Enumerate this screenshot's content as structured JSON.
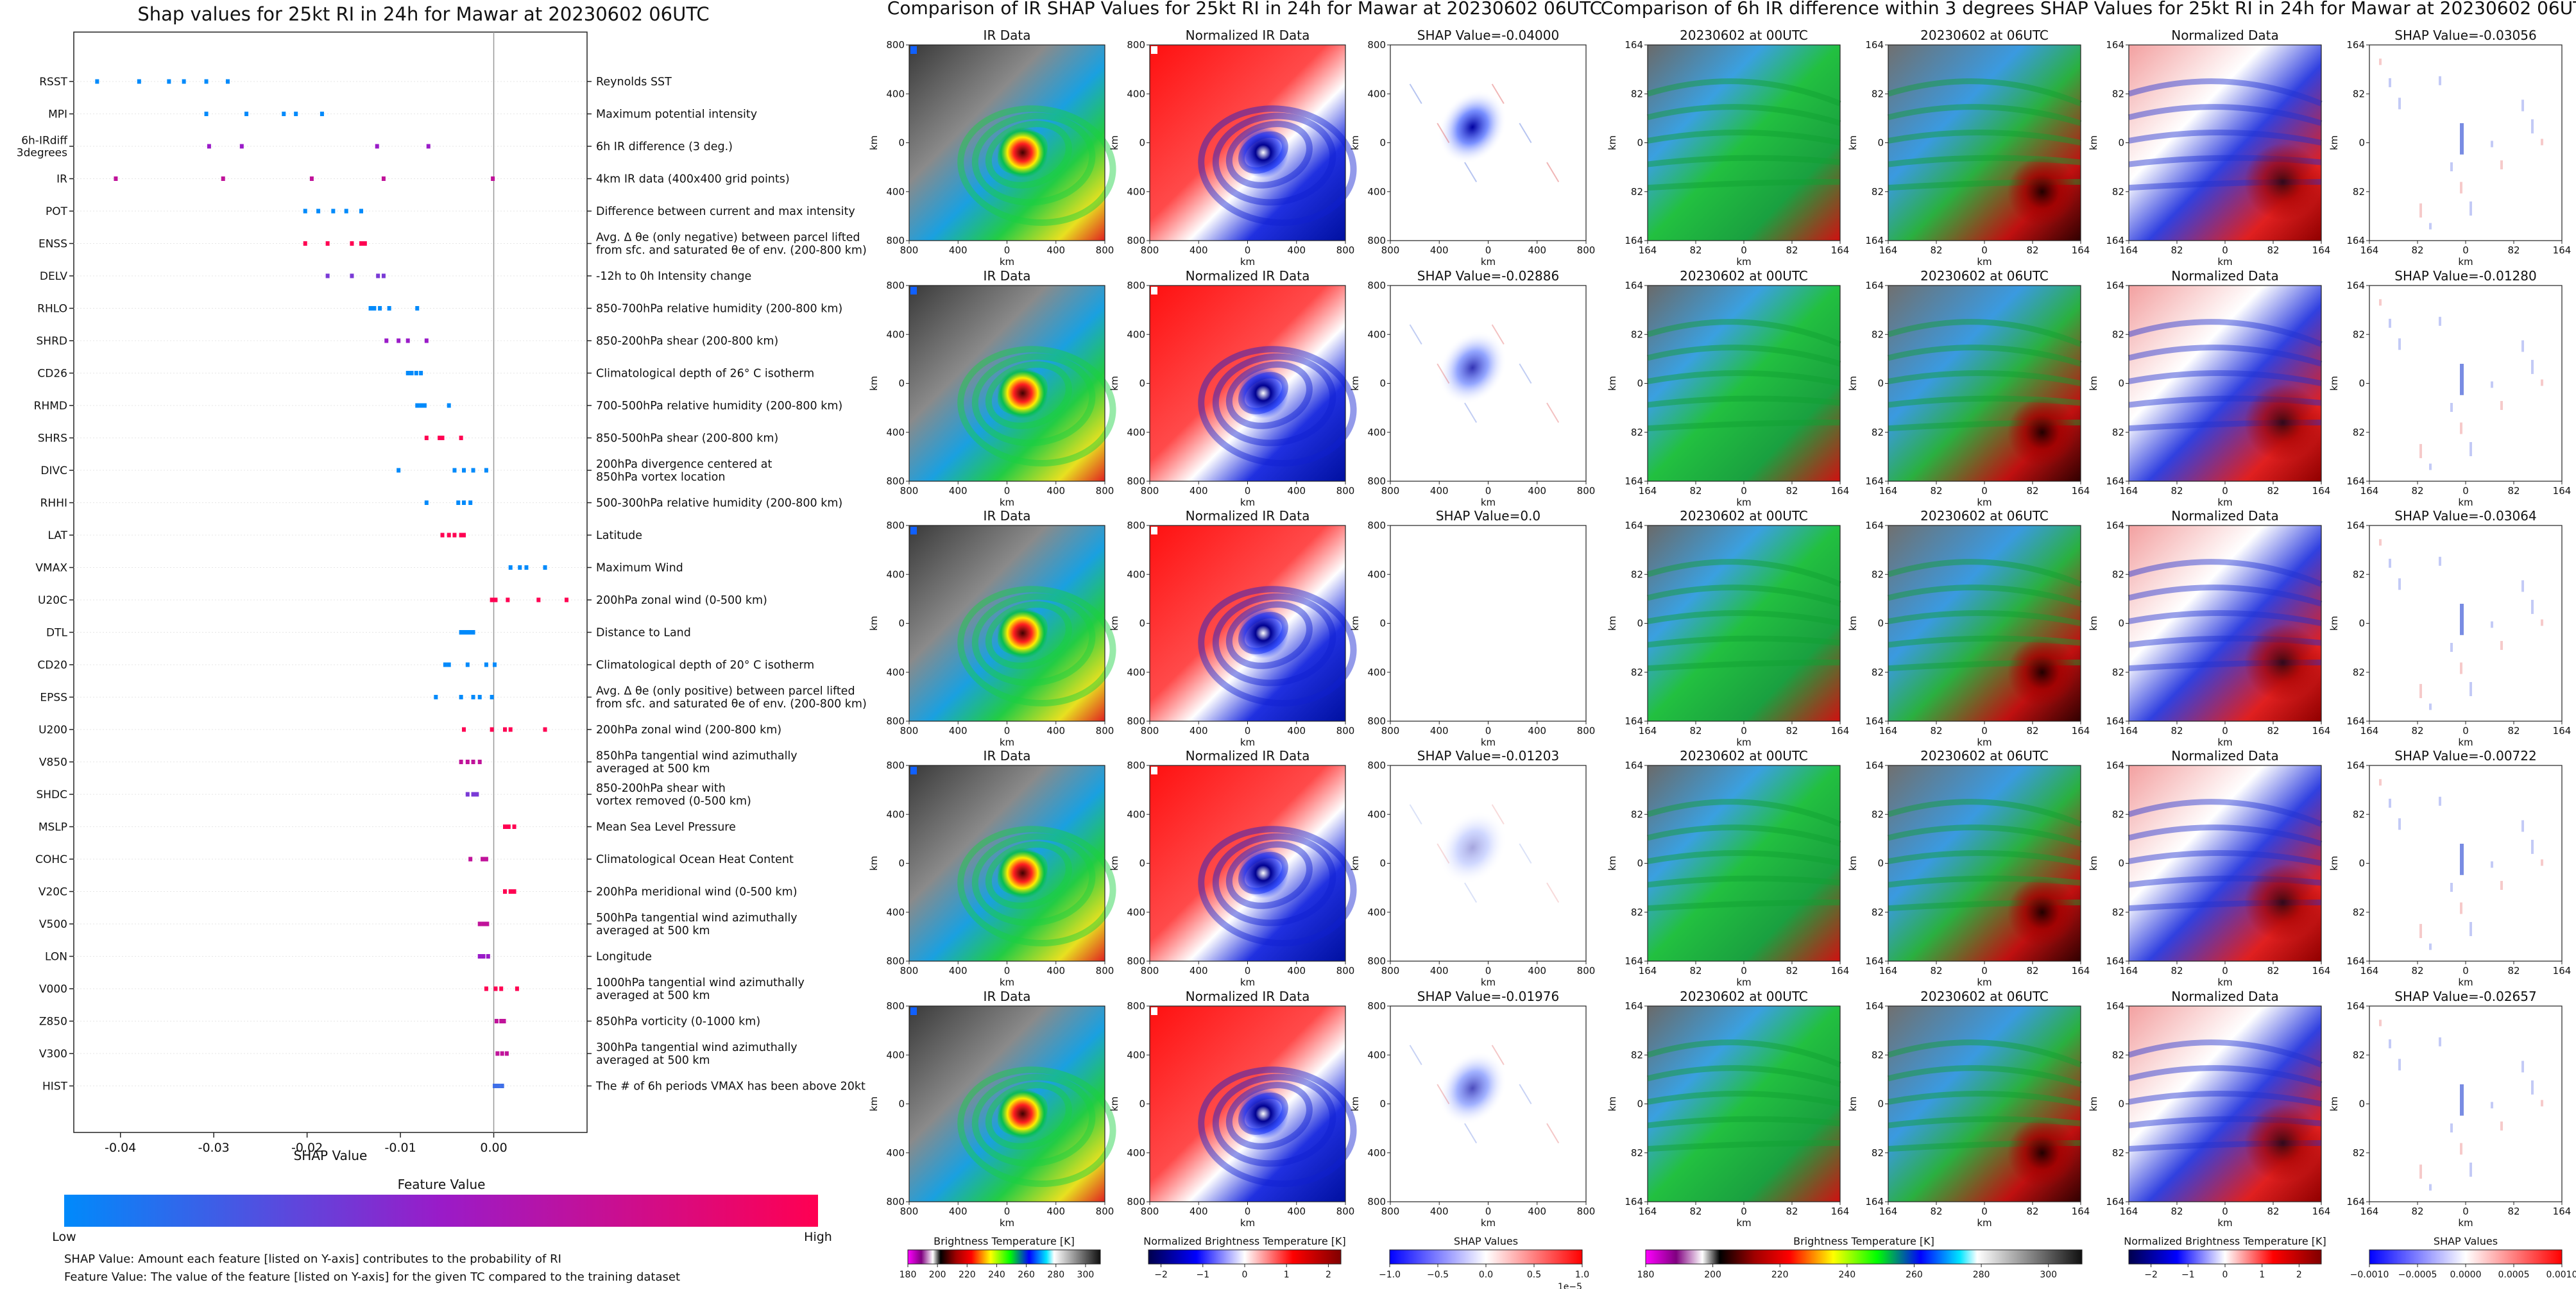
{
  "chart_data": [
    {
      "type": "scatter",
      "title": "Shap values for 25kt RI in 24h for Mawar at 20230602 06UTC",
      "xlabel": "SHAP Value",
      "xlim": [
        -0.045,
        0.01
      ],
      "x_ticks": [
        "-0.04",
        "-0.03",
        "-0.02",
        "-0.01",
        "0.00"
      ],
      "grid": false,
      "colorbar": {
        "title": "Feature Value",
        "low_label": "Low",
        "high_label": "High",
        "colors": [
          "#008afb",
          "#9a1bc8",
          "#ff0052"
        ]
      },
      "notes": [
        "SHAP Value: Amount each feature [listed on Y-axis] contributes to the probability of RI",
        "Feature Value: The value of the feature [listed on Y-axis] for the given TC compared to the training dataset"
      ],
      "features": [
        {
          "code": "RSST",
          "desc": "Reynolds SST",
          "color": "#008afb",
          "x": [
            -0.0425,
            -0.038,
            -0.0348,
            -0.0332,
            -0.0308,
            -0.0285
          ]
        },
        {
          "code": "MPI",
          "desc": "Maximum potential intensity",
          "color": "#008afb",
          "x": [
            -0.0308,
            -0.0265,
            -0.0225,
            -0.0212,
            -0.0184
          ]
        },
        {
          "code": "6h-IRdiff\n3degrees",
          "desc": "6h IR difference (3 deg.)",
          "color": "#9a1bc8",
          "x": [
            -0.0305,
            -0.027,
            -0.0125,
            -0.007
          ]
        },
        {
          "code": "IR",
          "desc": "4km IR data (400x400 grid points)",
          "color": "#c0139a",
          "x": [
            -0.0405,
            -0.029,
            -0.0195,
            -0.0118,
            -0.0001
          ]
        },
        {
          "code": "POT",
          "desc": "Difference between current and max intensity",
          "color": "#008afb",
          "x": [
            -0.0202,
            -0.0188,
            -0.0172,
            -0.0158,
            -0.0142
          ]
        },
        {
          "code": "ENSS",
          "desc": "Avg. Δ θe (only negative) between parcel lifted\nfrom sfc. and saturated θe of env. (200-800 km)",
          "color": "#ff0052",
          "x": [
            -0.0202,
            -0.0178,
            -0.0152,
            -0.0142,
            -0.0138
          ]
        },
        {
          "code": "DELV",
          "desc": "-12h to 0h Intensity change",
          "color": "#7a3ad6",
          "x": [
            -0.0178,
            -0.0152,
            -0.0124,
            -0.0118
          ]
        },
        {
          "code": "RHLO",
          "desc": "850-700hPa relative humidity (200-800 km)",
          "color": "#008afb",
          "x": [
            -0.0132,
            -0.0128,
            -0.0122,
            -0.0112,
            -0.0082
          ]
        },
        {
          "code": "SHRD",
          "desc": "850-200hPa shear (200-800 km)",
          "color": "#9a1bc8",
          "x": [
            -0.0115,
            -0.0102,
            -0.0092,
            -0.0072
          ]
        },
        {
          "code": "CD26",
          "desc": "Climatological depth of 26° C isotherm",
          "color": "#008afb",
          "x": [
            -0.0092,
            -0.0088,
            -0.0083,
            -0.0078
          ]
        },
        {
          "code": "RHMD",
          "desc": "700-500hPa relative humidity (200-800 km)",
          "color": "#008afb",
          "x": [
            -0.0082,
            -0.0078,
            -0.0074,
            -0.0048
          ]
        },
        {
          "code": "SHRS",
          "desc": "850-500hPa shear (200-800 km)",
          "color": "#ff0052",
          "x": [
            -0.0072,
            -0.0058,
            -0.0055,
            -0.0035
          ]
        },
        {
          "code": "DIVC",
          "desc": "200hPa divergence centered at\n850hPa vortex location",
          "color": "#008afb",
          "x": [
            -0.0102,
            -0.0042,
            -0.0032,
            -0.0022,
            -0.0008
          ]
        },
        {
          "code": "RHHI",
          "desc": "500-300hPa relative humidity (200-800 km)",
          "color": "#008afb",
          "x": [
            -0.0072,
            -0.0038,
            -0.0032,
            -0.0025
          ]
        },
        {
          "code": "LAT",
          "desc": "Latitude",
          "color": "#ff0052",
          "x": [
            -0.0055,
            -0.0048,
            -0.0042,
            -0.0035,
            -0.0032
          ]
        },
        {
          "code": "VMAX",
          "desc": "Maximum Wind",
          "color": "#008afb",
          "x": [
            0.0018,
            0.0028,
            0.0035,
            0.0055
          ]
        },
        {
          "code": "U20C",
          "desc": "200hPa zonal wind (0-500 km)",
          "color": "#ff0052",
          "x": [
            -0.0002,
            0.0002,
            0.0015,
            0.0048,
            0.0078
          ]
        },
        {
          "code": "DTL",
          "desc": "Distance to Land",
          "color": "#008afb",
          "x": [
            -0.0035,
            -0.0032,
            -0.0028,
            -0.0025,
            -0.0022
          ]
        },
        {
          "code": "CD20",
          "desc": "Climatological depth of 20° C isotherm",
          "color": "#008afb",
          "x": [
            -0.0052,
            -0.0048,
            -0.0028,
            -0.0008,
            0.0001
          ]
        },
        {
          "code": "EPSS",
          "desc": "Avg. Δ θe (only positive) between parcel lifted\nfrom sfc. and saturated θe of env. (200-800 km)",
          "color": "#008afb",
          "x": [
            -0.0062,
            -0.0035,
            -0.0022,
            -0.0015,
            -0.0002
          ]
        },
        {
          "code": "U200",
          "desc": "200hPa zonal wind (200-800 km)",
          "color": "#ff0052",
          "x": [
            -0.0032,
            -0.0002,
            0.0012,
            0.0018,
            0.0055
          ]
        },
        {
          "code": "V850",
          "desc": "850hPa tangential wind azimuthally\naveraged at 500 km",
          "color": "#c0139a",
          "x": [
            -0.0035,
            -0.0028,
            -0.0022,
            -0.0015
          ]
        },
        {
          "code": "SHDC",
          "desc": "850-200hPa shear with\nvortex removed (0-500 km)",
          "color": "#7a3ad6",
          "x": [
            -0.0028,
            -0.0022,
            -0.0018
          ]
        },
        {
          "code": "MSLP",
          "desc": "Mean Sea Level Pressure",
          "color": "#ff0052",
          "x": [
            0.0012,
            0.0016,
            0.0022
          ]
        },
        {
          "code": "COHC",
          "desc": "Climatological Ocean Heat Content",
          "color": "#c0139a",
          "x": [
            -0.0025,
            -0.0012,
            -0.0008
          ]
        },
        {
          "code": "V20C",
          "desc": "200hPa meridional wind (0-500 km)",
          "color": "#ff0052",
          "x": [
            0.0012,
            0.0018,
            0.0022
          ]
        },
        {
          "code": "V500",
          "desc": "500hPa tangential wind azimuthally\naveraged at 500 km",
          "color": "#c0139a",
          "x": [
            -0.0015,
            -0.0011,
            -0.0007
          ]
        },
        {
          "code": "LON",
          "desc": "Longitude",
          "color": "#9a1bc8",
          "x": [
            -0.0015,
            -0.0011,
            -0.0006
          ]
        },
        {
          "code": "V000",
          "desc": "1000hPa tangential wind azimuthally\naveraged at 500 km",
          "color": "#ff0052",
          "x": [
            -0.0008,
            0.0002,
            0.0008,
            0.0025
          ]
        },
        {
          "code": "Z850",
          "desc": "850hPa vorticity (0-1000 km)",
          "color": "#c0139a",
          "x": [
            0.0003,
            0.0008,
            0.0011
          ]
        },
        {
          "code": "V300",
          "desc": "300hPa tangential wind azimuthally\naveraged at 500 km",
          "color": "#c0139a",
          "x": [
            0.0004,
            0.0009,
            0.0014
          ]
        },
        {
          "code": "HIST",
          "desc": "The # of 6h periods VMAX has been above 20kt",
          "color": "#3f6fe8",
          "x": [
            0.0001,
            0.0005,
            0.0009
          ]
        }
      ]
    },
    {
      "type": "heatmap",
      "title": "Comparison of IR SHAP Values for 25kt RI in 24h for Mawar at 20230602 06UTC",
      "column_titles": [
        "IR Data",
        "Normalized IR Data"
      ],
      "shap_titles": [
        "SHAP Value=-0.04000",
        "SHAP Value=-0.02886",
        "SHAP Value=0.0",
        "SHAP Value=-0.01203",
        "SHAP Value=-0.01976"
      ],
      "xlabel": "km",
      "ylabel": "km",
      "x_ticks": [
        "800",
        "400",
        "0",
        "400",
        "800"
      ],
      "y_ticks": [
        "800",
        "400",
        "0",
        "400",
        "800"
      ],
      "colorbars": [
        {
          "title": "Brightness Temperature [K]",
          "ticks": [
            "180",
            "200",
            "220",
            "240",
            "260",
            "280",
            "300"
          ],
          "range": [
            180,
            310
          ]
        },
        {
          "title": "Normalized Brightness Temperature [K]",
          "ticks": [
            "−2",
            "−1",
            "0",
            "1",
            "2"
          ],
          "range": [
            -2.3,
            2.3
          ]
        },
        {
          "title": "SHAP Values",
          "ticks": [
            "−1.0",
            "−0.5",
            "0.0",
            "0.5",
            "1.0"
          ],
          "range": [
            -1,
            1
          ],
          "exponent": "1e−5"
        }
      ]
    },
    {
      "type": "heatmap",
      "title": "Comparison of 6h IR difference within 3 degrees SHAP Values for 25kt RI in 24h for Mawar at 20230602 06UTC",
      "column_titles": [
        "20230602 at 00UTC",
        "20230602 at 06UTC",
        "Normalized Data"
      ],
      "shap_titles": [
        "SHAP Value=-0.03056",
        "SHAP Value=-0.01280",
        "SHAP Value=-0.03064",
        "SHAP Value=-0.00722",
        "SHAP Value=-0.02657"
      ],
      "xlabel": "km",
      "ylabel": "km",
      "x_ticks": [
        "164",
        "82",
        "0",
        "82",
        "164"
      ],
      "y_ticks": [
        "164",
        "82",
        "0",
        "82",
        "164"
      ],
      "colorbars": [
        {
          "title": "Brightness Temperature [K]",
          "ticks": [
            "180",
            "200",
            "220",
            "240",
            "260",
            "280",
            "300"
          ],
          "range": [
            180,
            310
          ]
        },
        {
          "title": "Normalized Brightness Temperature [K]",
          "ticks": [
            "−2",
            "−1",
            "0",
            "1",
            "2"
          ],
          "range": [
            -2.6,
            2.6
          ]
        },
        {
          "title": "SHAP Values",
          "ticks": [
            "−0.0010",
            "−0.0005",
            "0.0000",
            "0.0005",
            "0.0010"
          ],
          "range": [
            -0.001,
            0.001
          ]
        }
      ]
    }
  ]
}
